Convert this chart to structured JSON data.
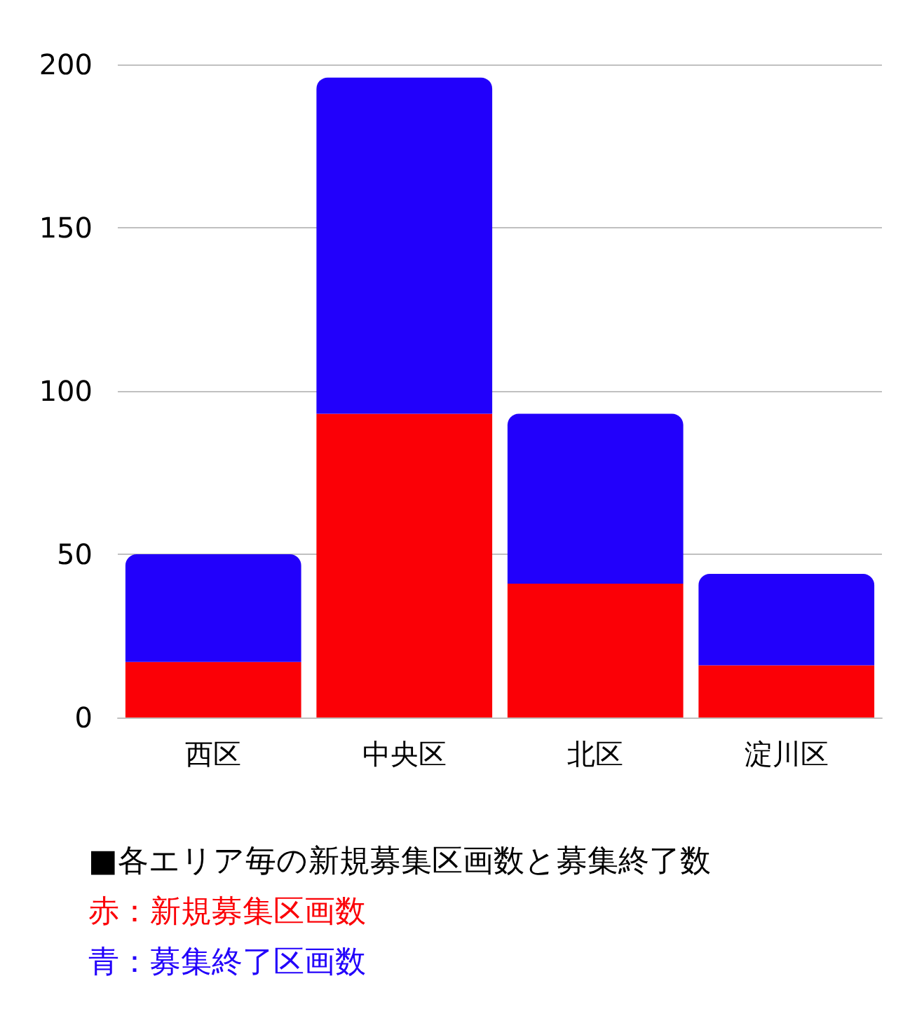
{
  "chart_data": {
    "type": "bar",
    "stacked": true,
    "categories": [
      "西区",
      "中央区",
      "北区",
      "淀川区"
    ],
    "series": [
      {
        "name": "赤：新規募集区画数",
        "color": "#fb0006",
        "values": [
          17,
          93,
          41,
          16
        ]
      },
      {
        "name": "青：募集終了区画数",
        "color": "#2200fb",
        "values": [
          33,
          103,
          52,
          28
        ]
      }
    ],
    "ylim": [
      0,
      200
    ],
    "yticks": [
      0,
      50,
      100,
      150,
      200
    ],
    "grid": "y",
    "annotations": [
      "■各エリア毎の新規募集区画数と募集終了数"
    ]
  }
}
